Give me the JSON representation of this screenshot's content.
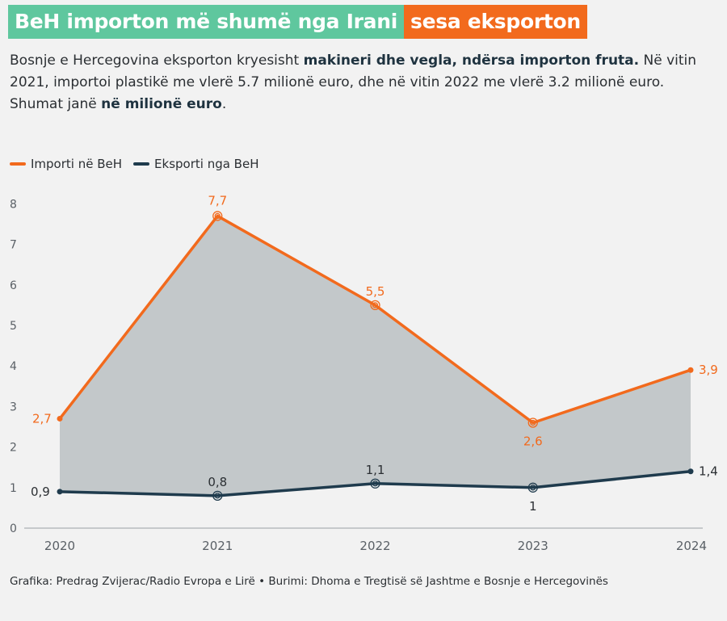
{
  "headline": {
    "part1": "BeH importon më shumë nga Irani",
    "part2": "sesa eksporton",
    "color1": "#5fc79e",
    "color2": "#f26a1d"
  },
  "description": {
    "line1_a": "Bosnje e Hercegovina eksporton kryesisht ",
    "line1_bold": "makineri dhe vegla, ndërsa importon fruta.",
    "line1_b": " Në vitin 2021, importoi plastikë me vlerë 5.7 milionë euro, dhe në vitin 2022 me vlerë 3.2 milionë euro.",
    "line2_a": "Shumat janë ",
    "line2_bold": "në milionë euro",
    "line2_b": "."
  },
  "legend": [
    {
      "label": "Importi në BeH",
      "color": "#f26a1d"
    },
    {
      "label": "Eksporti nga BeH",
      "color": "#1f3b4d"
    }
  ],
  "chart_data": {
    "type": "line",
    "x": [
      "2020",
      "2021",
      "2022",
      "2023",
      "2024"
    ],
    "series": [
      {
        "name": "Importi në BeH",
        "values": [
          2.7,
          7.7,
          5.5,
          2.6,
          3.9
        ],
        "labels": [
          "2,7",
          "7,7",
          "5,5",
          "2,6",
          "3,9"
        ],
        "color": "#f26a1d"
      },
      {
        "name": "Eksporti nga BeH",
        "values": [
          0.9,
          0.8,
          1.1,
          1.0,
          1.4
        ],
        "labels": [
          "0,9",
          "0,8",
          "1,1",
          "1",
          "1,4"
        ],
        "color": "#1f3b4d"
      }
    ],
    "ylim": [
      0,
      8
    ],
    "yticks": [
      "0",
      "1",
      "2",
      "3",
      "4",
      "5",
      "6",
      "7",
      "8"
    ],
    "fill_between_color": "#c3c8ca",
    "grid": false
  },
  "source": "Grafika: Predrag Zvijerac/Radio Evropa e Lirë • Burimi: Dhoma e Tregtisë së Jashtme e Bosnje e Hercegovinës"
}
